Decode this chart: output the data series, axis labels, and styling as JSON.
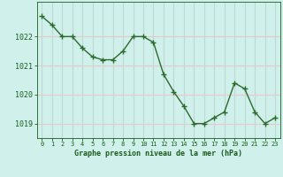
{
  "x": [
    0,
    1,
    2,
    3,
    4,
    5,
    6,
    7,
    8,
    9,
    10,
    11,
    12,
    13,
    14,
    15,
    16,
    17,
    18,
    19,
    20,
    21,
    22,
    23
  ],
  "y": [
    1022.7,
    1022.4,
    1022.0,
    1022.0,
    1021.6,
    1021.3,
    1021.2,
    1021.2,
    1021.5,
    1022.0,
    1022.0,
    1021.8,
    1020.7,
    1020.1,
    1019.6,
    1019.0,
    1019.0,
    1019.2,
    1019.4,
    1020.4,
    1020.2,
    1019.4,
    1019.0,
    1019.2
  ],
  "line_color": "#2d6a2d",
  "marker": "+",
  "marker_size": 4,
  "bg_color": "#cff0eb",
  "grid_color_h": "#e8c8c8",
  "grid_color_v": "#c0d8d4",
  "xlabel": "Graphe pression niveau de la mer (hPa)",
  "xlabel_color": "#1a5c1a",
  "tick_color": "#1a5c1a",
  "ylim": [
    1018.5,
    1023.2
  ],
  "yticks": [
    1019,
    1020,
    1021,
    1022
  ],
  "xlim": [
    -0.5,
    23.5
  ],
  "xticks": [
    0,
    1,
    2,
    3,
    4,
    5,
    6,
    7,
    8,
    9,
    10,
    11,
    12,
    13,
    14,
    15,
    16,
    17,
    18,
    19,
    20,
    21,
    22,
    23
  ]
}
